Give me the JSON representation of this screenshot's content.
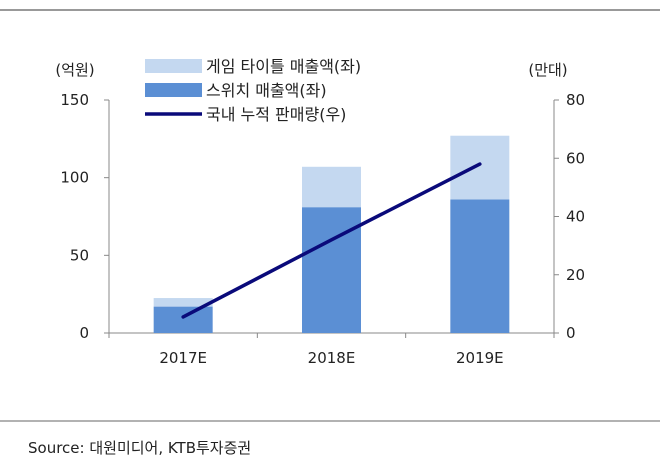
{
  "chart_data": {
    "type": "bar",
    "categories": [
      "2017E",
      "2018E",
      "2019E"
    ],
    "series": [
      {
        "name": "스위치 매출액(좌)",
        "kind": "bar-stack",
        "axis": "left",
        "values": [
          17,
          81,
          86
        ],
        "color": "#5B8FD4"
      },
      {
        "name": "게임 타이틀 매출액(좌)",
        "kind": "bar-stack",
        "axis": "left",
        "values": [
          5.5,
          26,
          41
        ],
        "color": "#C4D8F0"
      },
      {
        "name": "국내 누적 판매량(우)",
        "kind": "line",
        "axis": "right",
        "values": [
          5.5,
          32,
          58
        ],
        "color": "#0A0A7A"
      }
    ],
    "left_axis": {
      "label": "(억원)",
      "ylim": [
        0,
        150
      ],
      "ticks": [
        "0",
        "50",
        "100",
        "150"
      ]
    },
    "right_axis": {
      "label": "(만대)",
      "ylim": [
        0,
        80
      ],
      "ticks": [
        "0",
        "20",
        "40",
        "60",
        "80"
      ]
    },
    "legend": "top-left",
    "grid": false
  },
  "source": "Source:  대원미디어, KTB투자증권"
}
